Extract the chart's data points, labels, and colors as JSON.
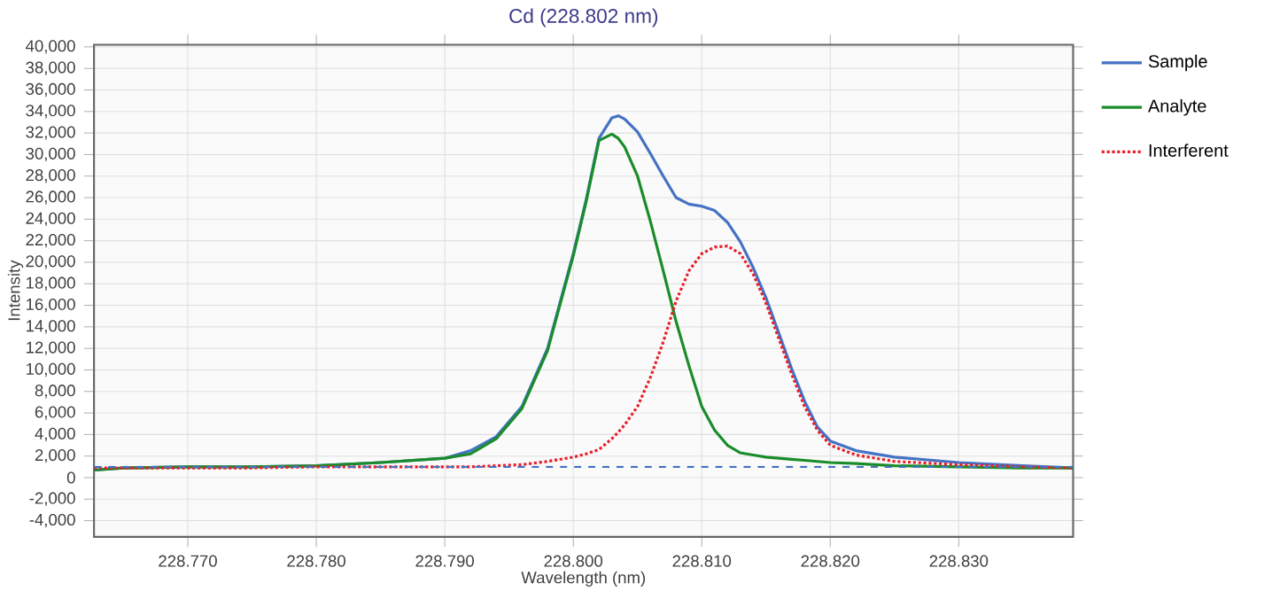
{
  "chart_data": {
    "type": "line",
    "title": "Cd (228.802 nm)",
    "xlabel": "Wavelength (nm)",
    "ylabel": "Intensity",
    "x": [
      228.7627,
      228.765,
      228.77,
      228.775,
      228.78,
      228.785,
      228.79,
      228.792,
      228.794,
      228.796,
      228.798,
      228.8,
      228.801,
      228.802,
      228.803,
      228.8035,
      228.804,
      228.805,
      228.806,
      228.807,
      228.808,
      228.809,
      228.81,
      228.811,
      228.812,
      228.813,
      228.814,
      228.815,
      228.816,
      228.817,
      228.818,
      228.819,
      228.82,
      228.822,
      228.825,
      228.83,
      228.835,
      228.8389
    ],
    "series": [
      {
        "name": "Sample",
        "color": "#4472c4",
        "line_style": "solid",
        "values": [
          700,
          900,
          1000,
          1000,
          1100,
          1400,
          1800,
          2500,
          3800,
          6600,
          12000,
          20800,
          25800,
          31500,
          33400,
          33600,
          33300,
          32100,
          30100,
          28000,
          26000,
          25400,
          25200,
          24800,
          23700,
          21900,
          19500,
          16700,
          13400,
          10100,
          7100,
          4700,
          3400,
          2500,
          1900,
          1400,
          1100,
          900
        ]
      },
      {
        "name": "Analyte",
        "color": "#1a8c2a",
        "line_style": "solid",
        "values": [
          700,
          900,
          1000,
          1000,
          1100,
          1400,
          1800,
          2200,
          3600,
          6400,
          11800,
          20600,
          25600,
          31300,
          31900,
          31500,
          30700,
          28000,
          23800,
          19200,
          14500,
          10400,
          6600,
          4400,
          3000,
          2300,
          2100,
          1900,
          1800,
          1700,
          1600,
          1500,
          1400,
          1300,
          1100,
          1000,
          900,
          900
        ]
      },
      {
        "name": "Interferent",
        "color": "#e8202a",
        "line_style": "dotted",
        "values": [
          900,
          900,
          900,
          900,
          1000,
          1000,
          1000,
          1000,
          1100,
          1200,
          1500,
          1900,
          2200,
          2600,
          3600,
          4200,
          4900,
          6600,
          9300,
          12600,
          16400,
          19200,
          20800,
          21400,
          21500,
          20800,
          18900,
          16200,
          12900,
          9600,
          6600,
          4400,
          3000,
          2100,
          1500,
          1200,
          1000,
          900
        ]
      }
    ],
    "ref_lines": [
      {
        "axis": "y",
        "value": 1000,
        "color": "#4472c4",
        "line_style": "dashed"
      }
    ],
    "xlim": [
      228.7627,
      228.8389
    ],
    "ylim": [
      -5500,
      40200
    ],
    "xticks": [
      {
        "value": 228.77,
        "label": "228.770"
      },
      {
        "value": 228.78,
        "label": "228.780"
      },
      {
        "value": 228.79,
        "label": "228.790"
      },
      {
        "value": 228.8,
        "label": "228.800"
      },
      {
        "value": 228.81,
        "label": "228.810"
      },
      {
        "value": 228.82,
        "label": "228.820"
      },
      {
        "value": 228.83,
        "label": "228.830"
      }
    ],
    "yticks": [
      {
        "value": -4000,
        "label": "-4,000"
      },
      {
        "value": -2000,
        "label": "-2,000"
      },
      0,
      {
        "value": 2000,
        "label": "2,000"
      },
      {
        "value": 4000,
        "label": "4,000"
      },
      {
        "value": 6000,
        "label": "6,000"
      },
      {
        "value": 8000,
        "label": "8,000"
      },
      {
        "value": 10000,
        "label": "10,000"
      },
      {
        "value": 12000,
        "label": "12,000"
      },
      {
        "value": 14000,
        "label": "14,000"
      },
      {
        "value": 16000,
        "label": "16,000"
      },
      {
        "value": 18000,
        "label": "18,000"
      },
      {
        "value": 20000,
        "label": "20,000"
      },
      {
        "value": 22000,
        "label": "22,000"
      },
      {
        "value": 24000,
        "label": "24,000"
      },
      {
        "value": 26000,
        "label": "26,000"
      },
      {
        "value": 28000,
        "label": "28,000"
      },
      {
        "value": 30000,
        "label": "30,000"
      },
      {
        "value": 32000,
        "label": "32,000"
      },
      {
        "value": 34000,
        "label": "34,000"
      },
      {
        "value": 36000,
        "label": "36,000"
      },
      {
        "value": 38000,
        "label": "38,000"
      },
      {
        "value": 40000,
        "label": "40,000"
      }
    ],
    "grid": true,
    "legend": "right",
    "marker": "none"
  }
}
